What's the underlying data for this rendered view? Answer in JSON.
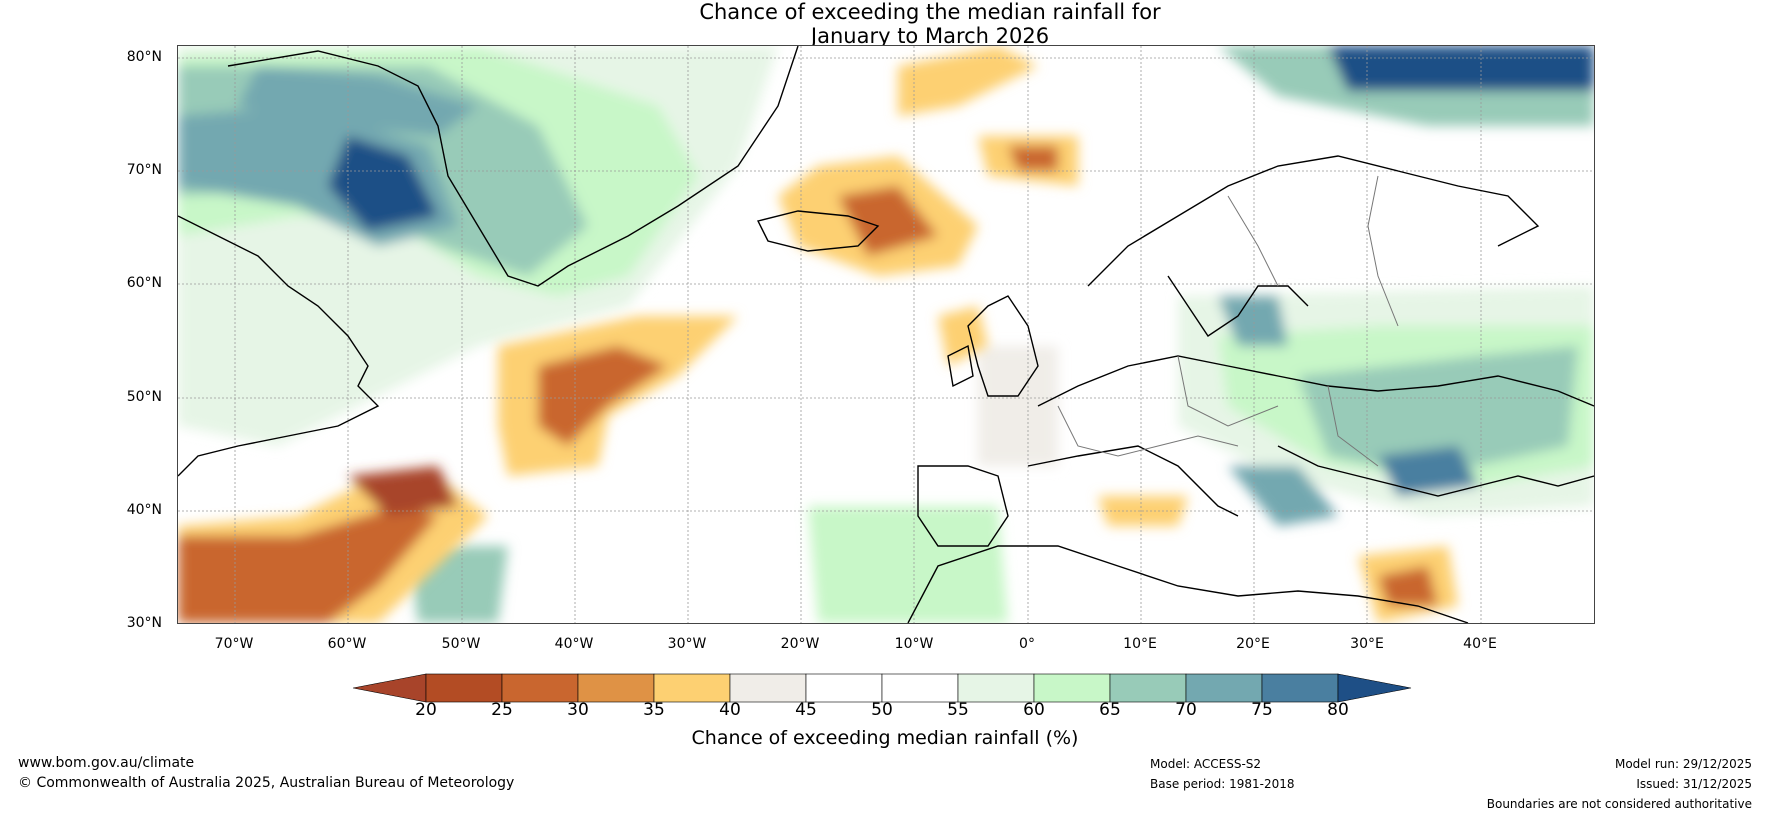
{
  "title": {
    "line1": "Chance of exceeding the median rainfall for",
    "line2": "January to March 2026"
  },
  "map": {
    "lat_labels": [
      "80°N",
      "70°N",
      "60°N",
      "50°N",
      "40°N",
      "30°N"
    ],
    "lon_labels": [
      "70°W",
      "60°W",
      "50°W",
      "40°W",
      "30°W",
      "20°W",
      "10°W",
      "0°",
      "10°E",
      "20°E",
      "30°E",
      "40°E"
    ]
  },
  "colorbar": {
    "ticks": [
      "20",
      "25",
      "30",
      "35",
      "40",
      "45",
      "50",
      "55",
      "60",
      "65",
      "70",
      "75",
      "80"
    ],
    "colors": [
      "#a8442a",
      "#b34c24",
      "#c9662f",
      "#df9245",
      "#fdd072",
      "#f0ede8",
      "#ffffff",
      "#ffffff",
      "#e6f5e6",
      "#c8f7c8",
      "#98cbb8",
      "#73a8b0",
      "#4a7fa0",
      "#1e4f86"
    ],
    "low_color": "#a8442a",
    "high_color": "#1e4f86",
    "label": "Chance of exceeding median rainfall (%)"
  },
  "footer": {
    "website": "www.bom.gov.au/climate",
    "copyright": "© Commonwealth of Australia 2025, Australian Bureau of Meteorology",
    "model": "Model: ACCESS-S2",
    "base_period": "Base period: 1981-2018",
    "model_run": "Model run: 29/12/2025",
    "issued": "Issued: 31/12/2025",
    "disclaimer": "Boundaries are not considered authoritative"
  }
}
